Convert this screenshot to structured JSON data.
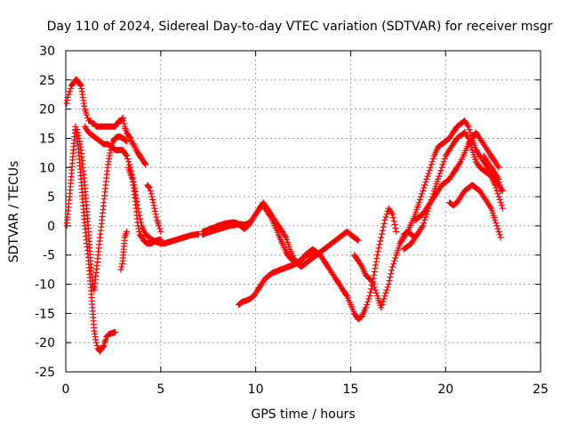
{
  "chart_data": {
    "type": "scatter",
    "title": "Day 110 of 2024, Sidereal Day-to-day VTEC variation (SDTVAR) for receiver msgr",
    "xlabel": "GPS time / hours",
    "ylabel": "SDTVAR / TECUs",
    "xlim": [
      0,
      25
    ],
    "ylim": [
      -25,
      30
    ],
    "xticks": [
      "0",
      "5",
      "10",
      "15",
      "20",
      "25"
    ],
    "yticks": [
      "-25",
      "-20",
      "-15",
      "-10",
      "-5",
      "0",
      "5",
      "10",
      "15",
      "20",
      "25",
      "30"
    ],
    "grid": true,
    "legend": "none",
    "color": "#ff0000",
    "marker": "plus",
    "series": [
      {
        "x": [
          0.05,
          0.1,
          0.2,
          0.3,
          0.4,
          0.5,
          0.6,
          0.7,
          0.8,
          0.9,
          1.0,
          1.1,
          1.2,
          1.3,
          1.4,
          1.5,
          1.6,
          1.7,
          1.8,
          1.9,
          2.0,
          2.1,
          2.2,
          2.3,
          2.4,
          2.5,
          2.6,
          2.7,
          2.8,
          2.9,
          3.0,
          3.1,
          3.2,
          3.3,
          3.4,
          3.5,
          3.6,
          3.7,
          3.8,
          3.9,
          4.0,
          4.1,
          4.2
        ],
        "y": [
          21,
          22,
          23,
          24,
          24.5,
          25,
          25,
          24.5,
          24,
          22,
          20,
          19,
          18,
          18,
          17.5,
          17.5,
          17,
          17,
          17,
          17,
          17,
          17,
          17,
          17,
          17,
          17,
          17,
          17.5,
          18,
          18,
          18.5,
          17,
          16,
          15.5,
          15,
          14,
          14,
          13,
          12.5,
          12,
          11.5,
          11,
          10.5
        ]
      },
      {
        "x": [
          0.05,
          0.1,
          0.2,
          0.3,
          0.4,
          0.5,
          0.6,
          0.7,
          0.8,
          0.9,
          1.0,
          1.1,
          1.2,
          1.3,
          1.4,
          1.5,
          1.6,
          1.7,
          1.8,
          1.9,
          2.0,
          2.05,
          2.1,
          2.15,
          2.2,
          2.25,
          2.3,
          2.4,
          2.5,
          2.6
        ],
        "y": [
          0,
          2,
          5,
          9,
          13,
          17,
          15,
          12,
          8,
          4,
          0,
          -3,
          -6,
          -10,
          -14,
          -18,
          -20,
          -21,
          -21.5,
          -21,
          -20.5,
          -20,
          -19.5,
          -19,
          -18.8,
          -18.6,
          -18.5,
          -18.4,
          -18.3,
          -18.2
        ]
      },
      {
        "x": [
          0.6,
          0.7,
          0.8,
          0.9,
          1.0,
          1.1,
          1.2,
          1.3,
          1.4,
          1.5,
          1.6,
          1.7,
          1.8,
          1.9,
          2.0,
          2.1,
          2.2,
          2.3,
          2.4,
          2.5,
          2.6,
          2.7,
          2.8,
          2.9,
          3.0,
          3.1,
          3.2
        ],
        "y": [
          16.5,
          15,
          13,
          10,
          7,
          3,
          -1,
          -6,
          -10,
          -11,
          -8,
          -5,
          -2,
          1,
          4,
          7,
          10,
          12,
          13.5,
          14.5,
          15,
          15.2,
          15.3,
          15.2,
          15,
          14.8,
          14.5
        ]
      },
      {
        "x": [
          1.0,
          1.2,
          1.4,
          1.6,
          1.8,
          2.0,
          2.2,
          2.4,
          2.6,
          2.8,
          3.0,
          3.2,
          3.4,
          3.6,
          3.8,
          4.0,
          4.2,
          4.4,
          4.6,
          4.8,
          5.0,
          5.2,
          5.4,
          5.6,
          5.8,
          6.0,
          6.2,
          6.4,
          6.6,
          6.8,
          7.0
        ],
        "y": [
          17,
          16,
          15.5,
          15,
          14.5,
          14,
          14,
          13.5,
          13,
          13,
          13,
          12,
          10,
          7,
          3,
          0,
          -1.5,
          -2,
          -2.5,
          -2.8,
          -3,
          -3,
          -2.8,
          -2.6,
          -2.4,
          -2.2,
          -2,
          -1.8,
          -1.6,
          -1.5,
          -1.4
        ]
      },
      {
        "x": [
          3.3,
          3.4,
          3.5,
          3.6,
          3.7,
          3.8,
          3.9,
          4.0,
          4.1,
          4.2,
          4.3,
          4.4,
          4.5,
          4.6,
          4.7,
          4.8,
          4.9,
          5.0
        ],
        "y": [
          10,
          9,
          8,
          6,
          3,
          0,
          -1.5,
          -2,
          -2.5,
          -2.8,
          -3,
          -3,
          -3,
          -2.8,
          -2.6,
          -2.5,
          -2.4,
          -2.3
        ]
      },
      {
        "x": [
          4.3,
          4.4,
          4.5,
          4.6,
          4.7,
          4.8,
          4.9,
          5.0
        ],
        "y": [
          7,
          6.5,
          5.5,
          4,
          2.5,
          1,
          0,
          -1
        ]
      },
      {
        "x": [
          2.9,
          3.0,
          3.05,
          3.1,
          3.2
        ],
        "y": [
          -7.5,
          -6,
          -4,
          -2,
          -1
        ]
      },
      {
        "x": [
          7.2,
          7.4,
          7.6,
          7.8,
          8.0,
          8.2,
          8.4,
          8.6,
          8.8,
          9.0,
          9.2,
          9.4,
          9.6,
          9.8,
          10.0,
          10.2,
          10.4,
          10.6,
          10.8,
          11.0,
          11.2,
          11.4,
          11.6,
          11.8,
          12.0,
          12.2,
          12.4,
          12.6,
          12.8,
          13.0,
          13.2,
          13.4,
          13.6,
          13.8,
          14.0,
          14.2,
          14.4,
          14.6,
          14.8,
          15.0,
          15.2,
          15.4
        ],
        "y": [
          -1.5,
          -1.2,
          -1.0,
          -0.8,
          -0.6,
          -0.4,
          -0.2,
          0,
          0.1,
          0.2,
          0.3,
          0.2,
          0.4,
          1,
          2,
          3,
          4,
          3,
          2,
          1,
          0,
          -1,
          -2,
          -4,
          -5.5,
          -6.5,
          -7,
          -6.5,
          -6,
          -5.5,
          -5,
          -4.5,
          -4,
          -3.5,
          -3,
          -2.5,
          -2,
          -1.5,
          -1,
          -1.5,
          -2,
          -2.5
        ]
      },
      {
        "x": [
          7.2,
          7.4,
          7.6,
          7.8,
          8.0,
          8.2,
          8.4,
          8.6,
          8.8,
          9.0,
          9.2,
          9.4,
          9.6,
          9.8,
          10.0,
          10.2,
          10.4,
          10.6,
          10.8,
          11.0,
          11.2,
          11.4,
          11.6,
          11.8,
          12.0,
          12.2,
          12.4
        ],
        "y": [
          -1,
          -0.8,
          -0.5,
          -0.3,
          0,
          0.2,
          0.4,
          0.5,
          0.6,
          0.5,
          0,
          -0.5,
          0,
          1,
          2,
          3,
          3.5,
          2.5,
          1.5,
          0,
          -1.5,
          -3,
          -4.5,
          -5.5,
          -6,
          -6.2,
          -6
        ]
      },
      {
        "x": [
          9.1,
          9.3,
          9.5,
          9.7,
          9.9,
          10.1,
          10.3,
          10.5,
          10.7,
          10.9,
          11.1,
          11.3,
          11.5,
          11.7,
          11.9,
          12.1,
          12.3,
          12.5,
          12.7,
          12.9,
          13.1
        ],
        "y": [
          -13.5,
          -13,
          -12.8,
          -12.5,
          -12,
          -11,
          -10,
          -9,
          -8.5,
          -8,
          -7.8,
          -7.5,
          -7.3,
          -7,
          -6.8,
          -6.5,
          -6,
          -5.5,
          -5,
          -4.8,
          -4.6
        ]
      },
      {
        "x": [
          12.4,
          12.6,
          12.8,
          13.0,
          13.2,
          13.4,
          13.6,
          13.8,
          14.0,
          14.2,
          14.4,
          14.6,
          14.8,
          15.0,
          15.2,
          15.4,
          15.6,
          15.8,
          16.0,
          16.2,
          16.4,
          16.6,
          16.8,
          17.0,
          17.2,
          17.4
        ],
        "y": [
          -6,
          -5,
          -4.5,
          -4,
          -4.5,
          -5,
          -6,
          -7,
          -8,
          -9,
          -10,
          -11,
          -12,
          -13.5,
          -15,
          -16,
          -15.5,
          -14,
          -12,
          -9,
          -5,
          -2,
          1,
          3,
          2,
          -1
        ]
      },
      {
        "x": [
          15.2,
          15.4,
          15.6,
          15.8,
          16.0,
          16.2,
          16.4,
          16.6,
          16.8,
          17.0,
          17.2,
          17.4,
          17.6,
          17.8,
          18.0,
          18.2,
          18.4
        ],
        "y": [
          -5,
          -6,
          -7,
          -8.5,
          -9,
          -10,
          -12,
          -14,
          -12,
          -10,
          -7,
          -5,
          -3,
          -1.5,
          -1,
          -1.5,
          -2
        ]
      },
      {
        "x": [
          17.6,
          17.8,
          18.0,
          18.2,
          18.4,
          18.6,
          18.8,
          19.0,
          19.2,
          19.4,
          19.6,
          19.8,
          20.0,
          20.2,
          20.4,
          20.6,
          20.8,
          21.0,
          21.2,
          21.4,
          21.6,
          21.8,
          22.0,
          22.2,
          22.4,
          22.6,
          22.8,
          23.0
        ],
        "y": [
          -3,
          -2,
          -1,
          0.5,
          2,
          4,
          6,
          8,
          10,
          12,
          13.5,
          14,
          14.5,
          15,
          16,
          17,
          17.5,
          18,
          17,
          15,
          13,
          12,
          11,
          10,
          9,
          8,
          7,
          6
        ]
      },
      {
        "x": [
          17.8,
          18.0,
          18.2,
          18.4,
          18.6,
          18.8,
          19.0,
          19.2,
          19.4,
          19.6,
          19.8,
          20.0,
          20.2,
          20.4,
          20.6,
          20.8,
          21.0,
          21.2,
          21.4,
          21.6,
          21.8,
          22.0,
          22.2,
          22.4,
          22.6,
          22.8,
          23.0
        ],
        "y": [
          -4,
          -3.5,
          -3,
          -2,
          -1,
          0,
          2,
          4,
          6,
          8,
          10,
          12,
          13,
          14,
          15,
          15.5,
          16,
          15,
          13,
          11,
          10,
          9.5,
          9,
          8.5,
          7,
          5,
          3
        ]
      },
      {
        "x": [
          18.4,
          18.6,
          18.8,
          19.0,
          19.2,
          19.4,
          19.6,
          19.8,
          20.0,
          20.2,
          20.4,
          20.6,
          20.8,
          21.0,
          21.2,
          21.4,
          21.6,
          21.8,
          22.0,
          22.2,
          22.4,
          22.6,
          22.8
        ],
        "y": [
          1,
          1.5,
          2,
          3,
          4,
          5,
          6,
          7,
          7.5,
          8,
          9,
          10,
          11,
          12.5,
          14,
          15,
          16,
          15,
          14,
          13,
          12,
          11,
          10
        ]
      },
      {
        "x": [
          20.2,
          20.4,
          20.6,
          20.8,
          21.0,
          21.2,
          21.4,
          21.6,
          21.8,
          22.0,
          22.2,
          22.4,
          22.6,
          22.8,
          22.9
        ],
        "y": [
          4,
          3.5,
          4,
          5,
          6,
          6.5,
          7,
          6.5,
          6,
          5,
          4,
          3,
          1,
          -1,
          -2
        ]
      },
      {
        "x": [
          22.0,
          22.2,
          22.4,
          22.6,
          22.8,
          22.9
        ],
        "y": [
          12,
          11,
          10,
          9,
          8,
          6
        ]
      }
    ]
  }
}
